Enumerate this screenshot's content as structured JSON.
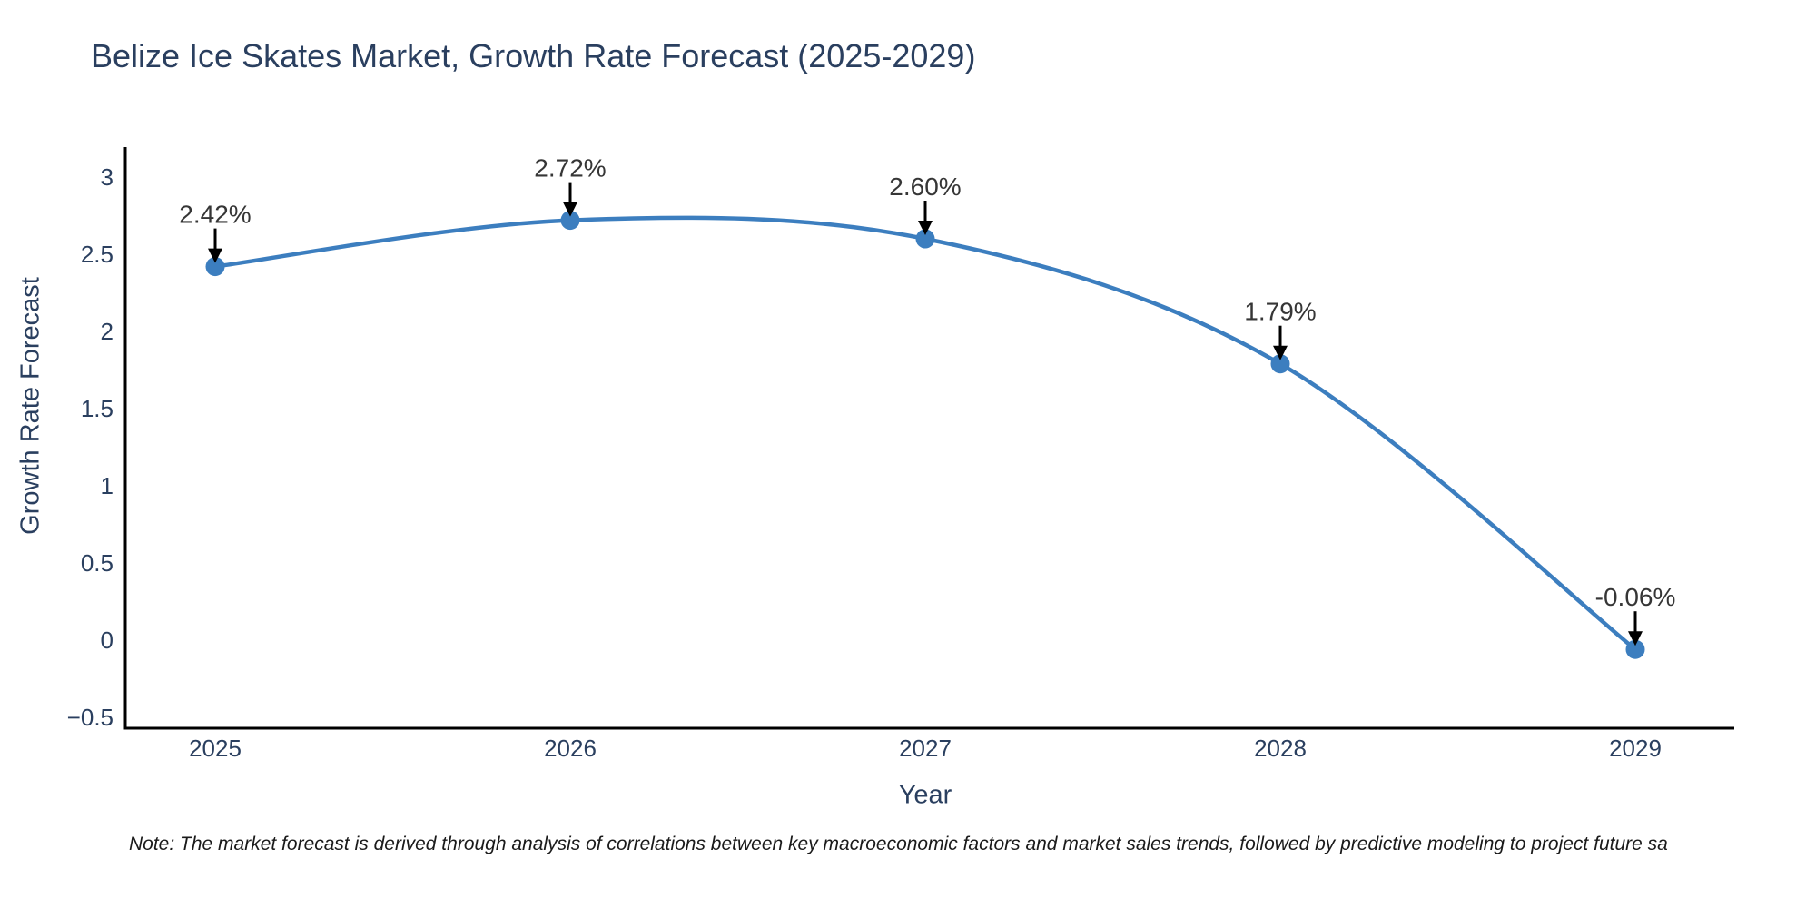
{
  "page": {
    "note": "Note: The market forecast is derived through analysis of correlations between key macroeconomic factors and market sales trends, followed by predictive modeling to project future sa"
  },
  "chart_data": {
    "type": "line",
    "line_shape": "spline",
    "title": "Belize Ice Skates Market, Growth Rate Forecast (2025-2029)",
    "xlabel": "Year",
    "ylabel": "Growth Rate Forecast",
    "categories": [
      "2025",
      "2026",
      "2027",
      "2028",
      "2029"
    ],
    "series": [
      {
        "name": "Growth Rate Forecast",
        "values": [
          2.42,
          2.72,
          2.6,
          1.79,
          -0.06
        ],
        "point_labels": [
          "2.42%",
          "2.72%",
          "2.60%",
          "1.79%",
          "-0.06%"
        ]
      }
    ],
    "ylim": [
      -0.5,
      3
    ],
    "yticks": [
      3,
      2.5,
      2,
      1.5,
      1,
      0.5,
      0,
      -0.5
    ],
    "ytick_labels": [
      "3",
      "2.5",
      "2",
      "1.5",
      "1",
      "0.5",
      "0",
      "−0.5"
    ],
    "grid": false,
    "legend": "none",
    "annotations_have_arrows": true,
    "colors": {
      "line": "#3c7ebf",
      "marker": "#3c7ebf",
      "axis": "#000000",
      "tick_text": "#2a3f5f",
      "title_text": "#2a3f5f",
      "annotation_text": "#363636",
      "arrow": "#000000",
      "background": "#ffffff"
    }
  }
}
